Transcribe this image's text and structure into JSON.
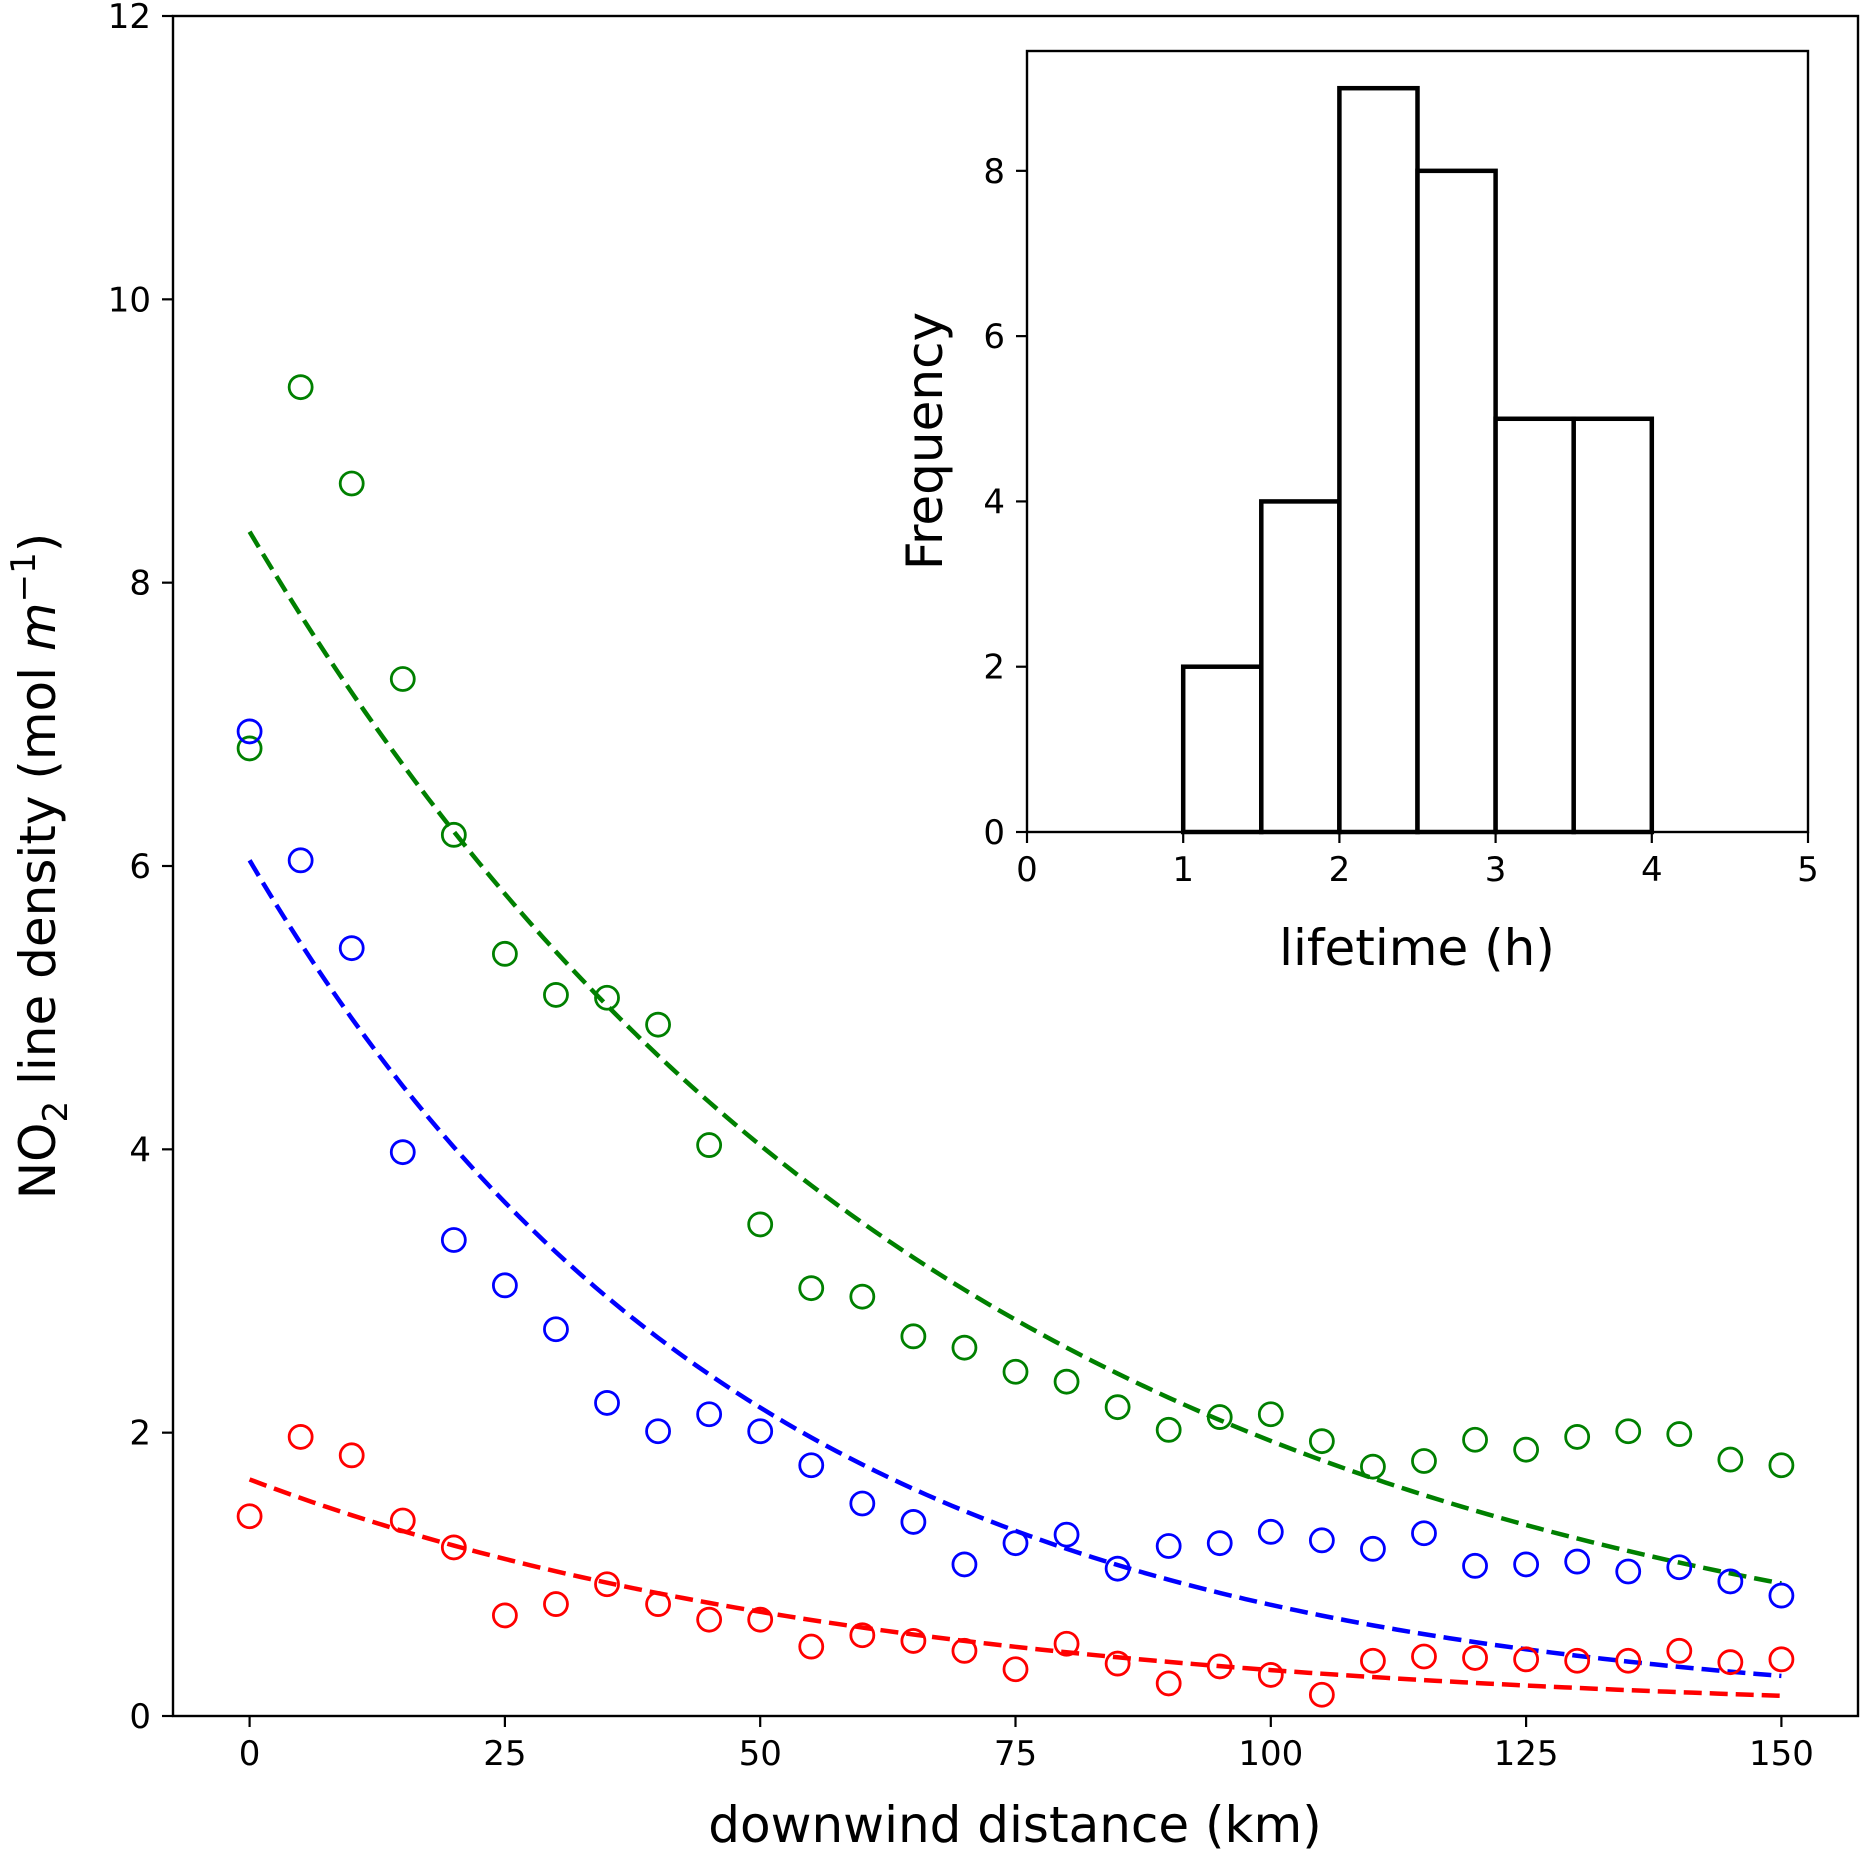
{
  "chart_data": [
    {
      "type": "scatter",
      "xlabel": "downwind distance (km)",
      "ylabel": {
        "prefix": "NO",
        "subscript": "2",
        "mid": " line density (mol ",
        "unit_italic": "m",
        "superscript": "−1",
        "suffix": ")"
      },
      "xlim": [
        -7.5,
        157.5
      ],
      "ylim": [
        0,
        12
      ],
      "xticks": [
        0,
        25,
        50,
        75,
        100,
        125,
        150
      ],
      "yticks": [
        0,
        2,
        4,
        6,
        8,
        10,
        12
      ],
      "grid": false,
      "x": [
        0,
        5,
        10,
        15,
        20,
        25,
        30,
        35,
        40,
        45,
        50,
        55,
        60,
        65,
        70,
        75,
        80,
        85,
        90,
        95,
        100,
        105,
        110,
        115,
        120,
        125,
        130,
        135,
        140,
        145,
        150
      ],
      "series": [
        {
          "color": "#008000",
          "marker": "open-circle",
          "values": [
            6.83,
            9.38,
            8.7,
            7.32,
            6.22,
            5.38,
            5.09,
            5.07,
            4.88,
            4.03,
            3.47,
            3.02,
            2.96,
            2.68,
            2.6,
            2.43,
            2.36,
            2.18,
            2.02,
            2.11,
            2.13,
            1.94,
            1.76,
            1.8,
            1.95,
            1.88,
            1.97,
            2.01,
            1.99,
            1.81,
            1.77
          ],
          "fit": {
            "type": "exponential",
            "x_start": 0,
            "x_end": 150,
            "y0": 8.36,
            "e_folding_km": 68.5,
            "style": "dashed"
          }
        },
        {
          "color": "#0000ff",
          "marker": "open-circle",
          "values": [
            6.95,
            6.04,
            5.42,
            3.98,
            3.36,
            3.04,
            2.73,
            2.21,
            2.01,
            2.13,
            2.01,
            1.77,
            1.5,
            1.37,
            1.07,
            1.22,
            1.28,
            1.04,
            1.2,
            1.22,
            1.3,
            1.24,
            1.18,
            1.29,
            1.06,
            1.07,
            1.09,
            1.02,
            1.05,
            0.95,
            0.85
          ],
          "fit": {
            "type": "exponential",
            "x_start": 0,
            "x_end": 150,
            "y0": 6.04,
            "e_folding_km": 49.0,
            "style": "dashed"
          }
        },
        {
          "color": "#ff0000",
          "marker": "open-circle",
          "values": [
            1.41,
            1.97,
            1.84,
            1.38,
            1.19,
            0.71,
            0.79,
            0.93,
            0.79,
            0.68,
            0.68,
            0.49,
            0.57,
            0.53,
            0.46,
            0.33,
            0.51,
            0.37,
            0.23,
            0.35,
            0.29,
            0.15,
            0.39,
            0.42,
            0.41,
            0.4,
            0.39,
            0.39,
            0.46,
            0.38,
            0.4
          ],
          "fit": {
            "type": "exponential",
            "x_start": 0,
            "x_end": 150,
            "y0": 1.67,
            "e_folding_km": 61.0,
            "style": "dashed"
          }
        }
      ]
    },
    {
      "type": "bar",
      "subtype": "histogram",
      "xlabel": "lifetime (h)",
      "ylabel": "Frequency",
      "xlim": [
        0,
        5
      ],
      "ylim": [
        0,
        9.45
      ],
      "xticks": [
        0,
        1,
        2,
        3,
        4,
        5
      ],
      "yticks": [
        0,
        2,
        4,
        6,
        8
      ],
      "bin_edges": [
        0.5,
        1.0,
        1.5,
        2.0,
        2.5,
        3.0,
        3.5,
        4.0,
        4.5
      ],
      "values": [
        0,
        2,
        4,
        9,
        8,
        5,
        5,
        0
      ],
      "fill": "#ffffff",
      "edge_color": "#000000"
    }
  ]
}
